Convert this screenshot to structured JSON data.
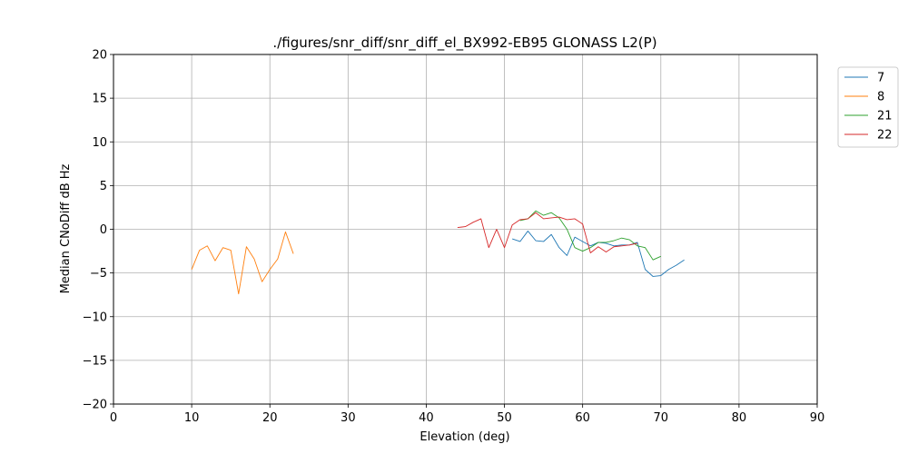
{
  "chart_data": {
    "type": "line",
    "title": "./figures/snr_diff/snr_diff_el_BX992-EB95 GLONASS  L2(P)",
    "xlabel": "Elevation (deg)",
    "ylabel": "Median CNoDiff dB Hz",
    "xlim": [
      0,
      90
    ],
    "ylim": [
      -20,
      20
    ],
    "xticks": [
      0,
      10,
      20,
      30,
      40,
      50,
      60,
      70,
      80,
      90
    ],
    "yticks": [
      -20,
      -15,
      -10,
      -5,
      0,
      5,
      10,
      15,
      20
    ],
    "xtick_labels": [
      "0",
      "10",
      "20",
      "30",
      "40",
      "50",
      "60",
      "70",
      "80",
      "90"
    ],
    "ytick_labels": [
      "−20",
      "−15",
      "−10",
      "−5",
      "0",
      "5",
      "10",
      "15",
      "20"
    ],
    "grid": true,
    "legend_position": "outside-top-right",
    "series": [
      {
        "name": "7",
        "color": "#1f77b4",
        "points": [
          [
            51,
            -1.1
          ],
          [
            52,
            -1.4
          ],
          [
            53,
            -0.2
          ],
          [
            54,
            -1.3
          ],
          [
            55,
            -1.4
          ],
          [
            56,
            -0.6
          ],
          [
            57,
            -2.1
          ],
          [
            58,
            -3.0
          ],
          [
            59,
            -0.9
          ],
          [
            60,
            -1.4
          ],
          [
            61,
            -1.9
          ],
          [
            62,
            -1.5
          ],
          [
            63,
            -1.6
          ],
          [
            64,
            -1.9
          ],
          [
            65,
            -1.8
          ],
          [
            66,
            -1.8
          ],
          [
            67,
            -1.5
          ],
          [
            68,
            -4.6
          ],
          [
            69,
            -5.4
          ],
          [
            70,
            -5.3
          ],
          [
            71,
            -4.6
          ],
          [
            72,
            -4.1
          ],
          [
            73,
            -3.5
          ]
        ]
      },
      {
        "name": "8",
        "color": "#ff7f0e",
        "points": [
          [
            10,
            -4.6
          ],
          [
            11,
            -2.4
          ],
          [
            12,
            -1.9
          ],
          [
            13,
            -3.6
          ],
          [
            14,
            -2.1
          ],
          [
            15,
            -2.4
          ],
          [
            16,
            -7.4
          ],
          [
            17,
            -2.0
          ],
          [
            18,
            -3.4
          ],
          [
            19,
            -6.0
          ],
          [
            20,
            -4.6
          ],
          [
            21,
            -3.4
          ],
          [
            22,
            -0.3
          ],
          [
            23,
            -2.8
          ]
        ]
      },
      {
        "name": "21",
        "color": "#2ca02c",
        "points": [
          [
            52,
            1.0
          ],
          [
            53,
            1.2
          ],
          [
            54,
            2.1
          ],
          [
            55,
            1.6
          ],
          [
            56,
            1.9
          ],
          [
            57,
            1.3
          ],
          [
            58,
            0.0
          ],
          [
            59,
            -2.1
          ],
          [
            60,
            -2.5
          ],
          [
            61,
            -2.1
          ],
          [
            62,
            -1.5
          ],
          [
            63,
            -1.5
          ],
          [
            64,
            -1.3
          ],
          [
            65,
            -1.0
          ],
          [
            66,
            -1.2
          ],
          [
            67,
            -1.9
          ],
          [
            68,
            -2.1
          ],
          [
            69,
            -3.5
          ],
          [
            70,
            -3.1
          ]
        ]
      },
      {
        "name": "22",
        "color": "#d62728",
        "points": [
          [
            44,
            0.2
          ],
          [
            45,
            0.3
          ],
          [
            46,
            0.8
          ],
          [
            47,
            1.2
          ],
          [
            48,
            -2.1
          ],
          [
            49,
            0.0
          ],
          [
            50,
            -2.1
          ],
          [
            51,
            0.5
          ],
          [
            52,
            1.1
          ],
          [
            53,
            1.2
          ],
          [
            54,
            1.9
          ],
          [
            55,
            1.2
          ],
          [
            56,
            1.3
          ],
          [
            57,
            1.4
          ],
          [
            58,
            1.1
          ],
          [
            59,
            1.2
          ],
          [
            60,
            0.6
          ],
          [
            61,
            -2.7
          ],
          [
            62,
            -2.0
          ],
          [
            63,
            -2.6
          ],
          [
            64,
            -2.0
          ],
          [
            65,
            -1.9
          ],
          [
            66,
            -1.8
          ],
          [
            67,
            -1.6
          ]
        ]
      }
    ]
  }
}
